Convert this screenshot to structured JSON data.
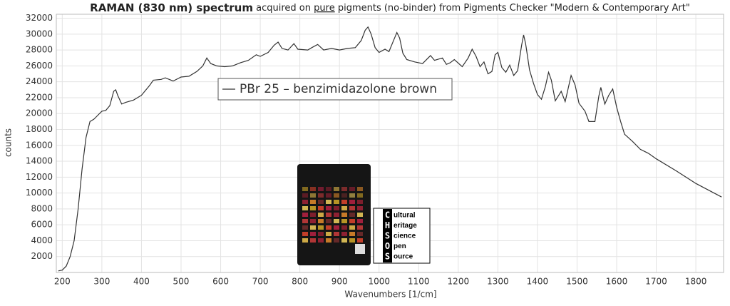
{
  "chart_data": {
    "type": "line",
    "title_parts": [
      "RAMAN (830 nm) spectrum",
      "acquired on",
      "pure",
      "pigments (no-binder) from Pigments Checker \"Modern & Contemporary Art\""
    ],
    "xlabel": "Wavenumbers [1/cm]",
    "ylabel": "counts",
    "x": [
      190,
      200,
      210,
      220,
      230,
      240,
      250,
      260,
      270,
      280,
      290,
      300,
      310,
      320,
      330,
      335,
      340,
      350,
      360,
      380,
      400,
      420,
      430,
      450,
      460,
      480,
      500,
      520,
      540,
      555,
      565,
      575,
      590,
      610,
      630,
      650,
      670,
      690,
      700,
      720,
      735,
      745,
      755,
      770,
      785,
      795,
      820,
      830,
      845,
      860,
      880,
      900,
      920,
      940,
      955,
      965,
      972,
      980,
      990,
      1000,
      1015,
      1025,
      1040,
      1045,
      1052,
      1060,
      1070,
      1090,
      1110,
      1130,
      1140,
      1160,
      1170,
      1180,
      1190,
      1210,
      1225,
      1235,
      1245,
      1255,
      1265,
      1275,
      1285,
      1293,
      1300,
      1310,
      1320,
      1330,
      1340,
      1350,
      1360,
      1365,
      1370,
      1380,
      1390,
      1400,
      1410,
      1420,
      1428,
      1435,
      1445,
      1460,
      1470,
      1485,
      1495,
      1505,
      1520,
      1530,
      1545,
      1555,
      1560,
      1570,
      1580,
      1590,
      1600,
      1610,
      1620,
      1640,
      1660,
      1680,
      1700,
      1750,
      1800,
      1865
    ],
    "series": [
      {
        "name": "PBr 25 – benzimidazolone brown",
        "color": "#333333",
        "values": [
          200,
          300,
          800,
          2000,
          4000,
          8000,
          13000,
          17000,
          19000,
          19300,
          19800,
          20300,
          20400,
          21000,
          22800,
          23000,
          22300,
          21200,
          21400,
          21700,
          22300,
          23500,
          24200,
          24300,
          24500,
          24100,
          24600,
          24700,
          25300,
          26000,
          27000,
          26300,
          26000,
          25900,
          26000,
          26400,
          26700,
          27400,
          27200,
          27700,
          28600,
          29000,
          28200,
          28000,
          28800,
          28100,
          28000,
          28300,
          28700,
          28000,
          28200,
          28000,
          28200,
          28300,
          29200,
          30500,
          30900,
          30000,
          28300,
          27700,
          28100,
          27800,
          29600,
          30200,
          29500,
          27600,
          26800,
          26500,
          26300,
          27300,
          26700,
          27000,
          26200,
          26400,
          26800,
          25900,
          27000,
          28100,
          27200,
          25900,
          26500,
          25000,
          25300,
          27400,
          27700,
          25800,
          25200,
          26100,
          24800,
          25400,
          28600,
          29900,
          28800,
          25500,
          23800,
          22400,
          21800,
          23400,
          25200,
          24200,
          21600,
          22800,
          21500,
          24800,
          23600,
          21300,
          20300,
          19000,
          19000,
          22200,
          23300,
          21200,
          22300,
          23100,
          20800,
          19000,
          17400,
          16500,
          15500,
          15000,
          14300,
          12800,
          11200,
          9500
        ]
      }
    ],
    "xlim": [
      185,
      1870
    ],
    "ylim": [
      0,
      32500
    ],
    "xticks": [
      200,
      300,
      400,
      500,
      600,
      700,
      800,
      900,
      1000,
      1100,
      1200,
      1300,
      1400,
      1500,
      1600,
      1700,
      1800
    ],
    "yticks": [
      2000,
      4000,
      6000,
      8000,
      10000,
      12000,
      14000,
      16000,
      18000,
      20000,
      22000,
      24000,
      26000,
      28000,
      30000,
      32000
    ],
    "grid": true
  },
  "logo": {
    "letters": [
      "C",
      "H",
      "S",
      "O",
      "S"
    ],
    "words": [
      "ultural",
      "eritage",
      "cience",
      "pen",
      "ource"
    ]
  }
}
